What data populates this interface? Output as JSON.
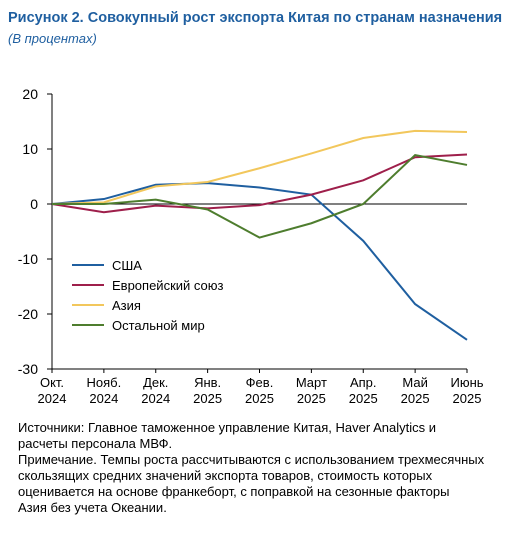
{
  "chart_data": {
    "type": "line",
    "title": "Рисунок 2. Совокупный рост экспорта Китая по странам назначения",
    "subtitle": "(В процентах)",
    "categories": [
      "Окт. 2024",
      "Нояб. 2024",
      "Дек. 2024",
      "Янв. 2025",
      "Фев. 2025",
      "Март 2025",
      "Апр. 2025",
      "Май 2025",
      "Июнь 2025"
    ],
    "series": [
      {
        "name": "США",
        "color": "#1f5fa0",
        "values": [
          0,
          0.9,
          3.5,
          3.8,
          3.0,
          1.7,
          -6.7,
          -18.2,
          -24.7
        ]
      },
      {
        "name": "Европейский союз",
        "color": "#9e1f4b",
        "values": [
          0,
          -1.5,
          -0.3,
          -0.8,
          -0.2,
          1.7,
          4.3,
          8.5,
          9.0
        ]
      },
      {
        "name": "Азия",
        "color": "#f2c75c",
        "values": [
          0,
          0.3,
          3.2,
          4.0,
          6.5,
          9.2,
          12.0,
          13.3,
          13.1
        ]
      },
      {
        "name": "Остальной мир",
        "color": "#4e7d2e",
        "values": [
          0,
          0,
          0.8,
          -1.0,
          -6.1,
          -3.5,
          0,
          8.9,
          7.1
        ]
      }
    ],
    "ylim": [
      -30,
      20
    ],
    "yticks": [
      -30,
      -20,
      -10,
      0,
      10,
      20
    ],
    "grid": false,
    "legend": "left",
    "notes": [
      "Источники: Главное таможенное управление Китая, Haver Analytics и",
      "расчеты персонала МВФ.",
      "Примечание. Темпы роста рассчитываются с использованием трехмесячных",
      "скользящих средних значений экспорта товаров, стоимость которых",
      "оценивается на основе франкеборт, с поправкой на сезонные факторы",
      "Азия без учета Океании."
    ]
  }
}
